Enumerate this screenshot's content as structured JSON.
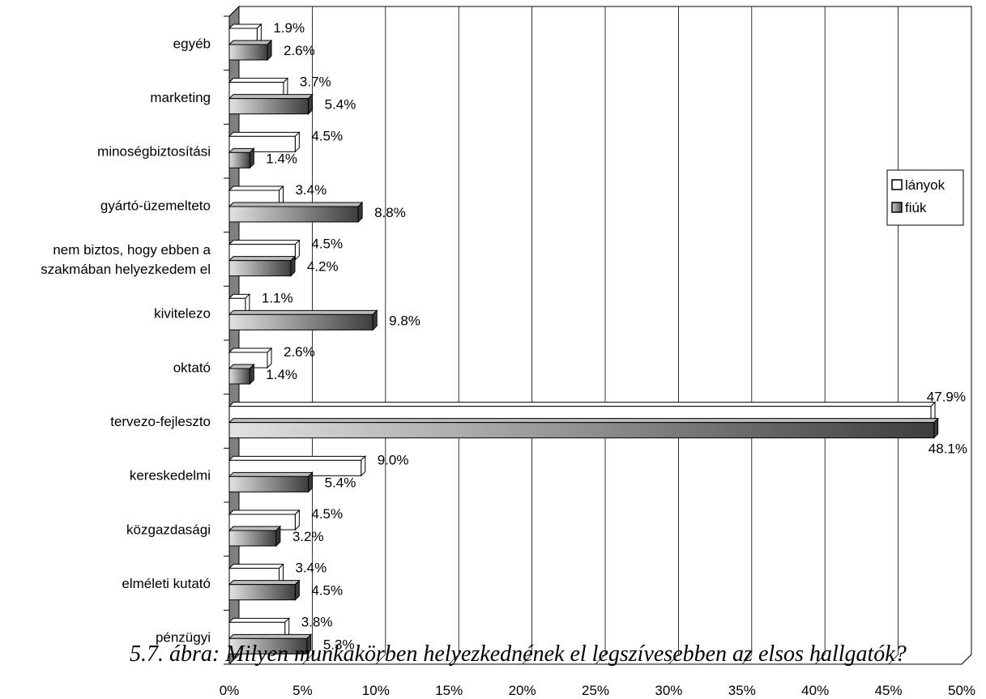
{
  "caption": "5.7. ábra: Milyen munkakörben helyezkednének el legszívesebben az elsos hallgatók?",
  "chart_data": {
    "type": "bar",
    "orientation": "horizontal",
    "categories": [
      "egyéb",
      "marketing",
      "minoségbiztosítási",
      "gyártó-üzemelteto",
      [
        "nem biztos, hogy ebben a",
        "szakmában helyezkedem el"
      ],
      "kivitelezo",
      "oktató",
      "tervezo-fejleszto",
      "kereskedelmi",
      "közgazdasági",
      "elméleti kutató",
      "pénzügyi"
    ],
    "series": [
      {
        "name": "lányok",
        "values": [
          1.9,
          3.7,
          4.5,
          3.4,
          4.5,
          1.1,
          2.6,
          47.9,
          9.0,
          4.5,
          3.4,
          3.8
        ],
        "labels": [
          "1.9%",
          "3.7%",
          "4.5%",
          "3.4%",
          "4.5%",
          "1.1%",
          "2.6%",
          "47.9%",
          "9.0%",
          "4.5%",
          "3.4%",
          "3.8%"
        ],
        "color": "#ffffff"
      },
      {
        "name": "fiúk",
        "values": [
          2.6,
          5.4,
          1.4,
          8.8,
          4.2,
          9.8,
          1.4,
          48.1,
          5.4,
          3.2,
          4.5,
          5.3
        ],
        "labels": [
          "2.6%",
          "5.4%",
          "1.4%",
          "8.8%",
          "4.2%",
          "9.8%",
          "1.4%",
          "48.1%",
          "5.4%",
          "3.2%",
          "4.5%",
          "5.3%"
        ],
        "color": "#808080"
      }
    ],
    "x_ticks": [
      "0%",
      "5%",
      "10%",
      "15%",
      "20%",
      "25%",
      "30%",
      "35%",
      "40%",
      "45%",
      "50%"
    ],
    "xlim": [
      0,
      50
    ],
    "grid": true,
    "legend": "right"
  }
}
